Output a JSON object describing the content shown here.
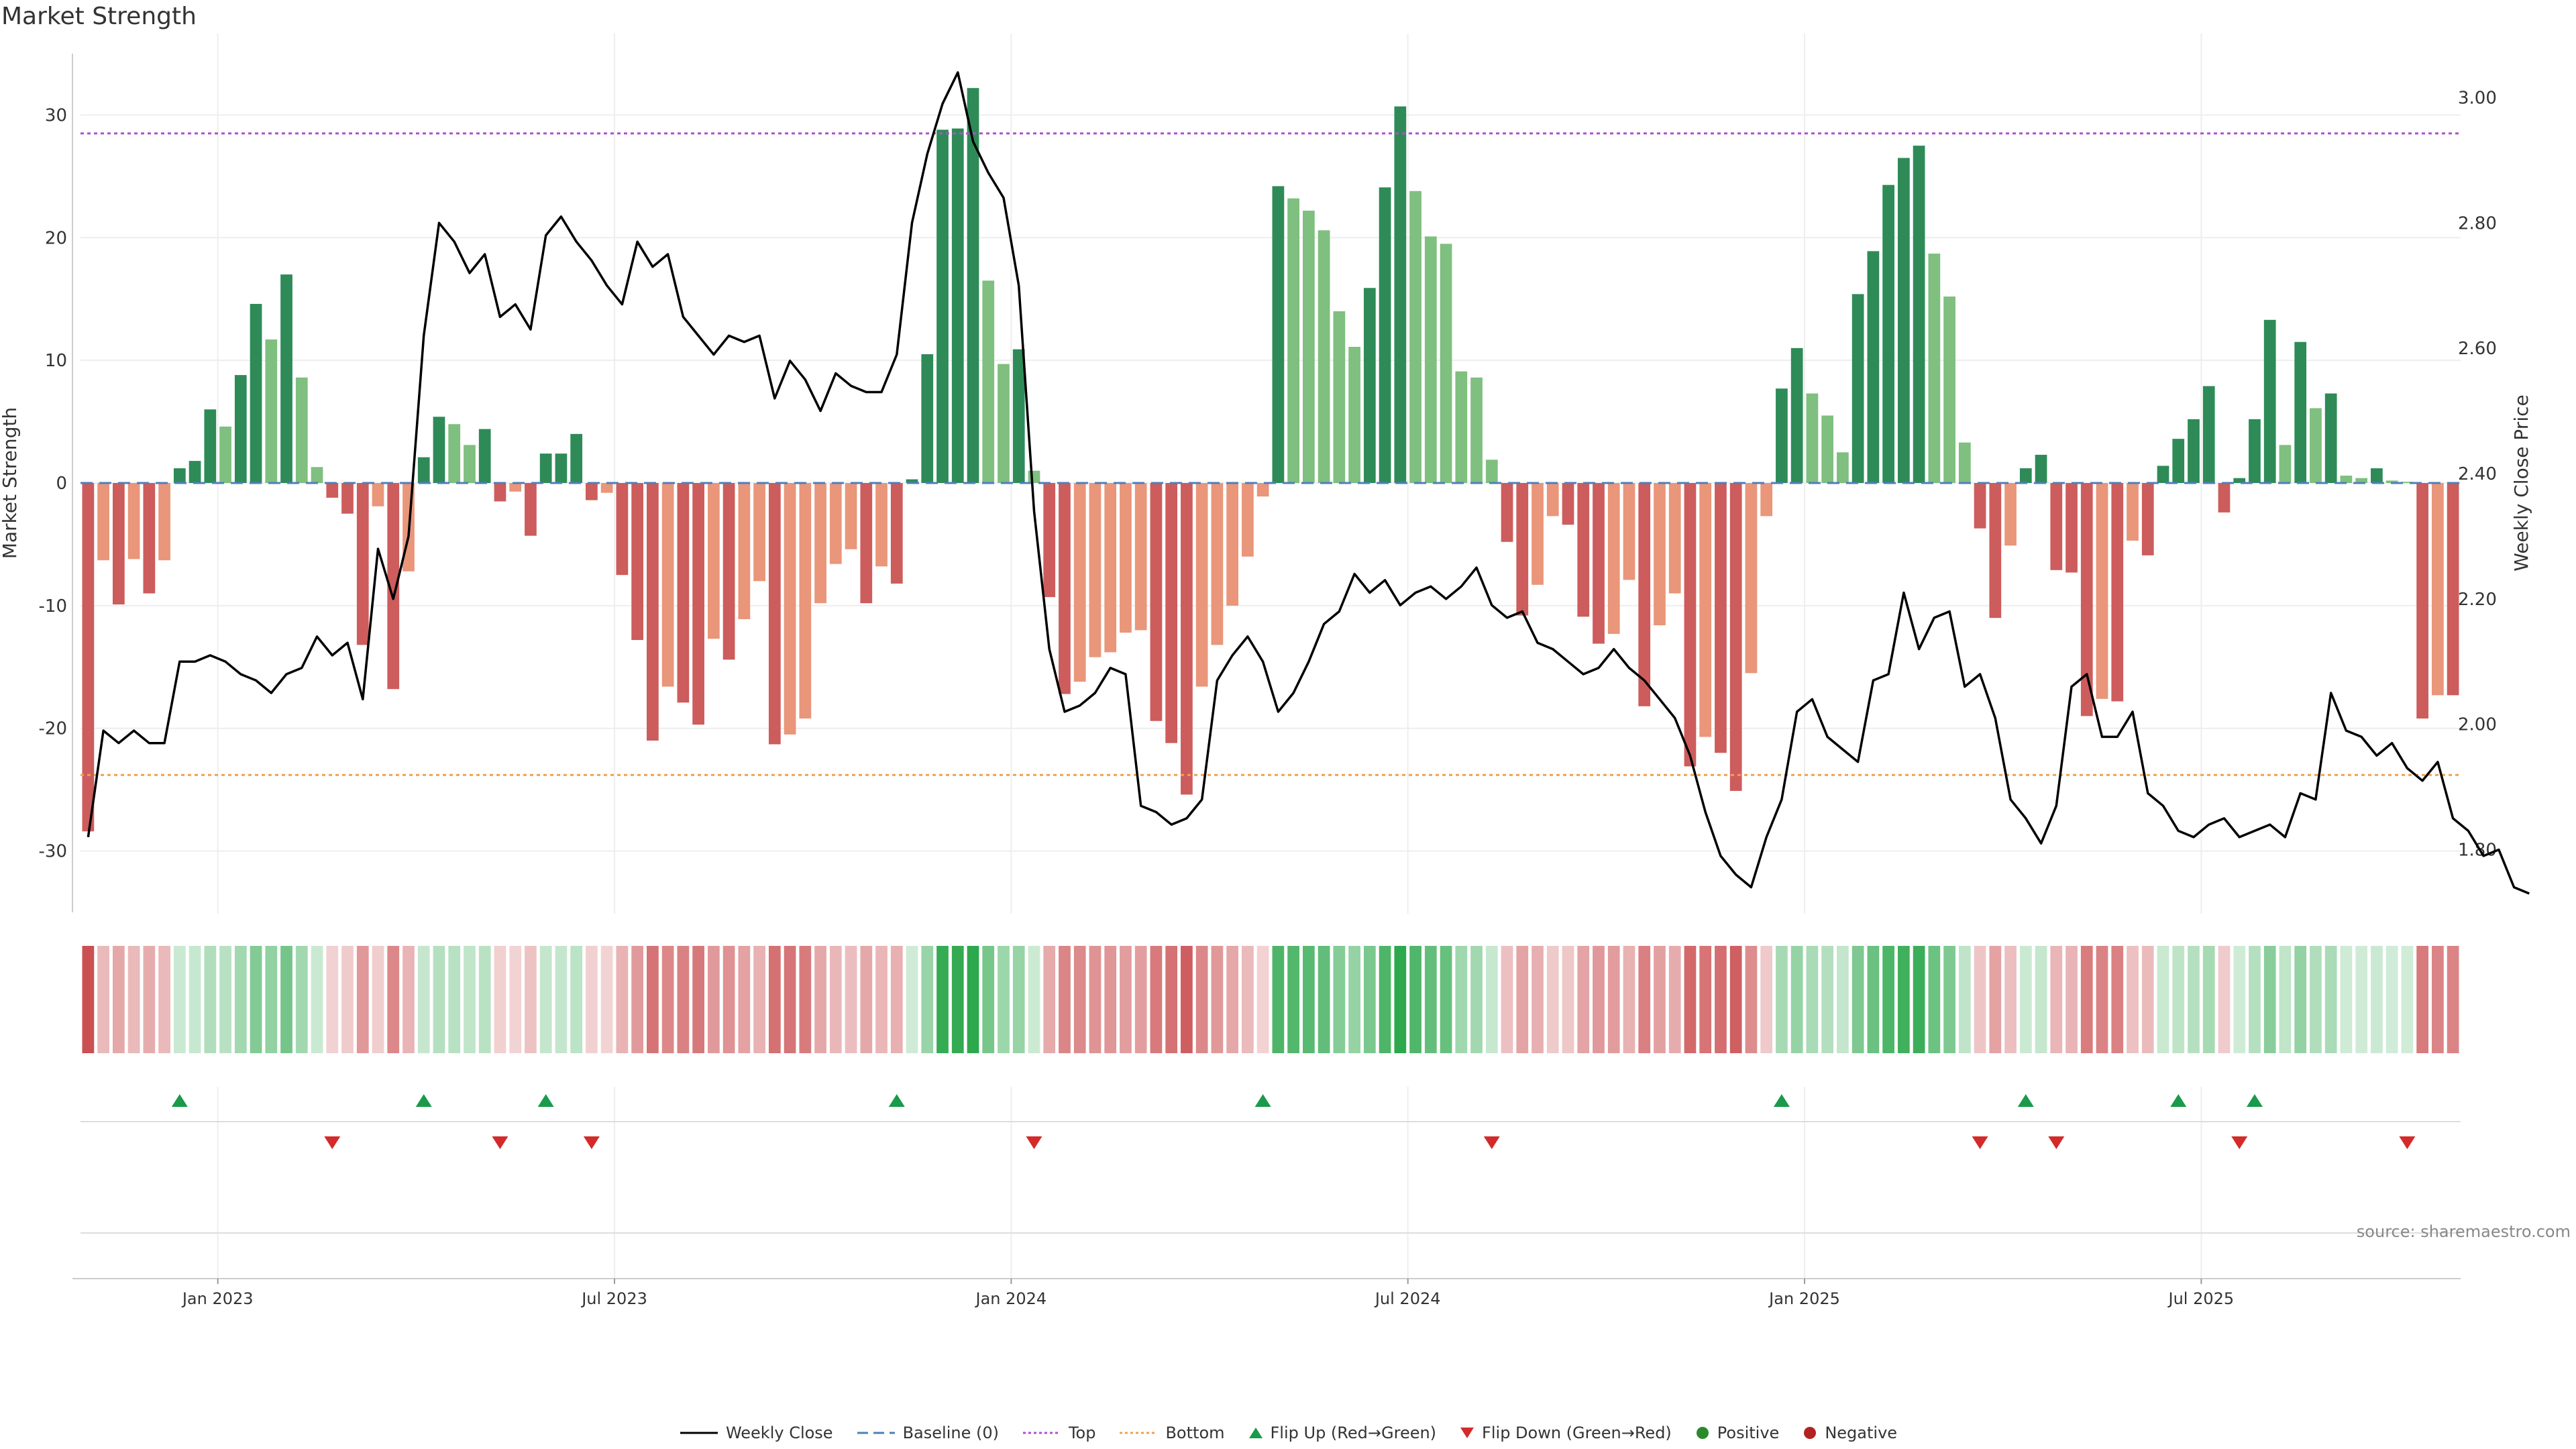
{
  "chart_data": {
    "type": "bar+line",
    "title": "Market Strength",
    "source_note": "source: sharemaestro.com",
    "left_axis": {
      "label": "Market Strength",
      "ylim": [
        -35,
        35
      ],
      "ticks": [
        30,
        20,
        10,
        0,
        -10,
        -20,
        -30
      ]
    },
    "right_axis": {
      "label": "Weekly Close Price",
      "ylim": [
        1.7,
        3.07
      ],
      "ticks": [
        "3.00",
        "2.80",
        "2.60",
        "2.40",
        "2.20",
        "2.00",
        "1.80"
      ],
      "tick_values": [
        3.0,
        2.8,
        2.6,
        2.4,
        2.2,
        2.0,
        1.8
      ]
    },
    "x_axis": {
      "tick_labels": [
        "Jan 2023",
        "Jul 2023",
        "Jan 2024",
        "Jul 2024",
        "Jan 2025",
        "Jul 2025"
      ],
      "tick_week_index": [
        9,
        35,
        61,
        87,
        113,
        139
      ]
    },
    "top_line": 28.5,
    "bottom_line": -23.8,
    "strength_values": [
      -28.4,
      -6.3,
      -9.9,
      -6.2,
      -9.0,
      -6.3,
      1.2,
      1.8,
      6.0,
      4.6,
      8.8,
      14.6,
      11.7,
      17.0,
      8.6,
      1.3,
      -1.2,
      -2.5,
      -13.2,
      -1.9,
      -16.8,
      -7.2,
      2.1,
      5.4,
      4.8,
      3.1,
      4.4,
      -1.5,
      -0.7,
      -4.3,
      2.4,
      2.4,
      4.0,
      -1.4,
      -0.8,
      -7.5,
      -12.8,
      -21.0,
      -16.6,
      -17.9,
      -19.7,
      -12.7,
      -14.4,
      -11.1,
      -8.0,
      -21.3,
      -20.5,
      -19.2,
      -9.8,
      -6.6,
      -5.4,
      -9.8,
      -6.8,
      -8.2,
      0.3,
      10.5,
      28.8,
      28.9,
      32.2,
      16.5,
      9.7,
      10.9,
      1.0,
      -9.3,
      -17.2,
      -16.2,
      -14.2,
      -13.8,
      -12.2,
      -12.0,
      -19.4,
      -21.2,
      -25.4,
      -16.6,
      -13.2,
      -10.0,
      -6.0,
      -1.1,
      24.2,
      23.2,
      22.2,
      20.6,
      14.0,
      11.1,
      15.9,
      24.1,
      30.7,
      23.8,
      20.1,
      19.5,
      9.1,
      8.6,
      1.9,
      -4.8,
      -10.8,
      -8.3,
      -2.7,
      -3.4,
      -10.9,
      -13.1,
      -12.3,
      -7.9,
      -18.2,
      -11.6,
      -9.0,
      -23.1,
      -20.7,
      -22.0,
      -25.1,
      -15.5,
      -2.7,
      7.7,
      11.0,
      7.3,
      5.5,
      2.5,
      15.4,
      18.9,
      24.3,
      26.5,
      27.5,
      18.7,
      15.2,
      3.3,
      -3.7,
      -11.0,
      -5.1,
      1.2,
      2.3,
      -7.1,
      -7.3,
      -19.0,
      -17.6,
      -17.8,
      -4.7,
      -5.9,
      1.4,
      3.6,
      5.2,
      7.9,
      -2.4,
      0.4,
      5.2,
      13.3,
      3.1,
      11.5,
      6.1,
      7.3,
      0.6,
      0.4,
      1.2,
      0.2,
      0.1,
      -19.2,
      -17.3,
      -17.3
    ],
    "close_values": [
      1.82,
      1.99,
      1.97,
      1.99,
      1.97,
      1.97,
      2.1,
      2.1,
      2.11,
      2.1,
      2.08,
      2.07,
      2.05,
      2.08,
      2.09,
      2.14,
      2.11,
      2.13,
      2.04,
      2.28,
      2.2,
      2.3,
      2.62,
      2.8,
      2.77,
      2.72,
      2.75,
      2.65,
      2.67,
      2.63,
      2.78,
      2.81,
      2.77,
      2.74,
      2.7,
      2.67,
      2.77,
      2.73,
      2.75,
      2.65,
      2.62,
      2.59,
      2.62,
      2.61,
      2.62,
      2.52,
      2.58,
      2.55,
      2.5,
      2.56,
      2.54,
      2.53,
      2.53,
      2.59,
      2.8,
      2.91,
      2.99,
      3.04,
      2.93,
      2.88,
      2.84,
      2.7,
      2.34,
      2.12,
      2.02,
      2.03,
      2.05,
      2.09,
      2.08,
      1.87,
      1.86,
      1.84,
      1.85,
      1.88,
      2.07,
      2.11,
      2.14,
      2.1,
      2.02,
      2.05,
      2.1,
      2.16,
      2.18,
      2.24,
      2.21,
      2.23,
      2.19,
      2.21,
      2.22,
      2.2,
      2.22,
      2.25,
      2.19,
      2.17,
      2.18,
      2.13,
      2.12,
      2.1,
      2.08,
      2.09,
      2.12,
      2.09,
      2.07,
      2.04,
      2.01,
      1.95,
      1.86,
      1.79,
      1.76,
      1.74,
      1.82,
      1.88,
      2.02,
      2.04,
      1.98,
      1.96,
      1.94,
      2.07,
      2.08,
      2.21,
      2.12,
      2.17,
      2.18,
      2.06,
      2.08,
      2.01,
      1.88,
      1.85,
      1.81,
      1.87,
      2.06,
      2.08,
      1.98,
      1.98,
      2.02,
      1.89,
      1.87,
      1.83,
      1.82,
      1.84,
      1.85,
      1.82,
      1.83,
      1.84,
      1.82,
      1.89,
      1.88,
      2.05,
      1.99,
      1.98,
      1.95,
      1.97,
      1.93,
      1.91,
      1.94,
      1.85,
      1.83,
      1.79,
      1.8,
      1.74,
      1.73
    ],
    "flip_up_weeks": [
      6,
      22,
      30,
      53,
      77,
      111,
      127,
      137,
      142
    ],
    "flip_down_weeks": [
      16,
      27,
      33,
      62,
      92,
      124,
      129,
      141,
      152
    ],
    "colors": {
      "positive_strong": "#2e8b57",
      "positive_light": "#7fbf7f",
      "negative_strong": "#cd5c5c",
      "negative_light": "#e9967a",
      "close_line": "#000000",
      "baseline": "#4f7fb8",
      "top": "#b04fd0",
      "bottom": "#f0a050",
      "flip_up": "#1a9a4a",
      "flip_down": "#d42a2a",
      "positive_dot": "#2a8a2a",
      "negative_dot": "#b22222",
      "grid": "#eeeeee",
      "axis_text": "#333333"
    },
    "legend": [
      {
        "key": "close",
        "label": "Weekly Close"
      },
      {
        "key": "baseline",
        "label": "Baseline (0)"
      },
      {
        "key": "top",
        "label": "Top"
      },
      {
        "key": "bottom",
        "label": "Bottom"
      },
      {
        "key": "flip_up",
        "label": "Flip Up (Red→Green)"
      },
      {
        "key": "flip_down",
        "label": "Flip Down (Green→Red)"
      },
      {
        "key": "positive",
        "label": "Positive"
      },
      {
        "key": "negative",
        "label": "Negative"
      }
    ]
  }
}
